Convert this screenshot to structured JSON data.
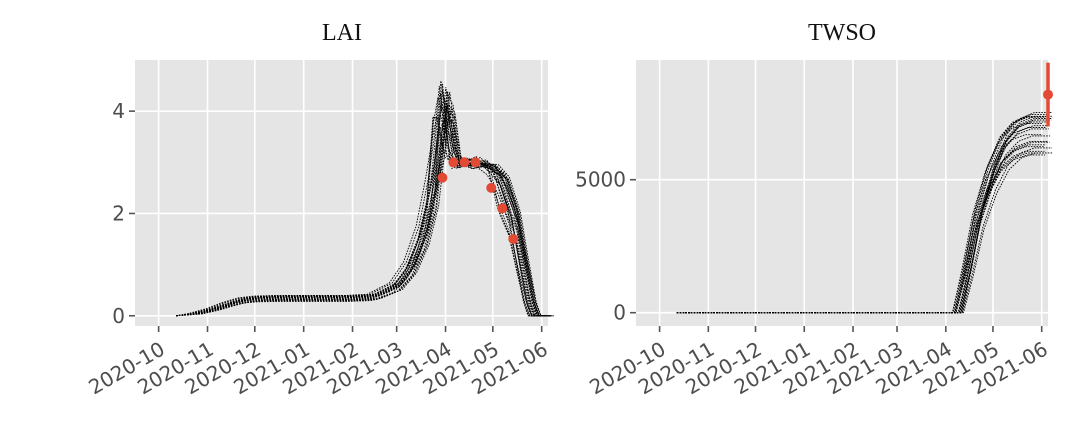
{
  "colors": {
    "background": "#ffffff",
    "plot_face": "#e5e5e5",
    "grid": "#ffffff",
    "ensemble": "#000000",
    "observation": "#e24a33",
    "tick_text": "#4d4d4d"
  },
  "chart_data": [
    {
      "type": "line",
      "title": "LAI",
      "xlabel": "",
      "ylabel": "",
      "x_axis": "date",
      "xlim": [
        "2020-09-16",
        "2021-06-05"
      ],
      "ylim": [
        -0.2,
        5.0
      ],
      "x_ticks": [
        "2020-10",
        "2020-11",
        "2020-12",
        "2021-01",
        "2021-02",
        "2021-03",
        "2021-04",
        "2021-05",
        "2021-06"
      ],
      "y_ticks": [
        0,
        2,
        4
      ],
      "y_tick_labels": [
        "0",
        "2",
        "4"
      ],
      "grid": true,
      "legend": "none",
      "ensemble_members": 25,
      "ensemble_mean": [
        [
          "2020-10-12",
          0.0
        ],
        [
          "2020-10-25",
          0.04
        ],
        [
          "2020-11-05",
          0.12
        ],
        [
          "2020-11-15",
          0.22
        ],
        [
          "2020-11-25",
          0.3
        ],
        [
          "2020-12-05",
          0.33
        ],
        [
          "2020-12-20",
          0.34
        ],
        [
          "2021-01-10",
          0.34
        ],
        [
          "2021-02-01",
          0.34
        ],
        [
          "2021-02-15",
          0.36
        ],
        [
          "2021-03-01",
          0.55
        ],
        [
          "2021-03-10",
          0.9
        ],
        [
          "2021-03-18",
          1.5
        ],
        [
          "2021-03-24",
          2.3
        ],
        [
          "2021-03-28",
          3.3
        ],
        [
          "2021-03-31",
          3.8
        ],
        [
          "2021-04-04",
          3.4
        ],
        [
          "2021-04-08",
          3.0
        ],
        [
          "2021-04-15",
          3.0
        ],
        [
          "2021-04-25",
          3.0
        ],
        [
          "2021-05-01",
          2.85
        ],
        [
          "2021-05-08",
          2.4
        ],
        [
          "2021-05-15",
          1.8
        ],
        [
          "2021-05-20",
          1.0
        ],
        [
          "2021-05-25",
          0.25
        ],
        [
          "2021-05-28",
          0.0
        ],
        [
          "2021-06-05",
          0.0
        ]
      ],
      "observations": [
        {
          "date": "2021-03-30",
          "value": 2.7,
          "error": 0.08
        },
        {
          "date": "2021-04-06",
          "value": 3.0,
          "error": 0.08
        },
        {
          "date": "2021-04-13",
          "value": 3.0,
          "error": 0.08
        },
        {
          "date": "2021-04-20",
          "value": 3.0,
          "error": 0.08
        },
        {
          "date": "2021-04-30",
          "value": 2.5,
          "error": 0.08
        },
        {
          "date": "2021-05-07",
          "value": 2.1,
          "error": 0.08
        },
        {
          "date": "2021-05-14",
          "value": 1.5,
          "error": 0.05
        }
      ]
    },
    {
      "type": "line",
      "title": "TWSO",
      "xlabel": "",
      "ylabel": "",
      "x_axis": "date",
      "xlim": [
        "2020-09-16",
        "2021-06-05"
      ],
      "ylim": [
        -500,
        9500
      ],
      "x_ticks": [
        "2020-10",
        "2020-11",
        "2020-12",
        "2021-01",
        "2021-02",
        "2021-03",
        "2021-04",
        "2021-05",
        "2021-06"
      ],
      "y_ticks": [
        0,
        5000
      ],
      "y_tick_labels": [
        "0",
        "5000"
      ],
      "grid": true,
      "legend": "none",
      "ensemble_members": 25,
      "ensemble_mean": [
        [
          "2020-10-12",
          0
        ],
        [
          "2021-04-01",
          0
        ],
        [
          "2021-04-09",
          0
        ],
        [
          "2021-04-15",
          1500
        ],
        [
          "2021-04-22",
          3500
        ],
        [
          "2021-04-30",
          5000
        ],
        [
          "2021-05-08",
          6000
        ],
        [
          "2021-05-16",
          6500
        ],
        [
          "2021-05-25",
          6700
        ],
        [
          "2021-06-05",
          6700
        ]
      ],
      "observations": [
        {
          "date": "2021-06-05",
          "value": 8200,
          "error": 1200
        }
      ]
    }
  ]
}
